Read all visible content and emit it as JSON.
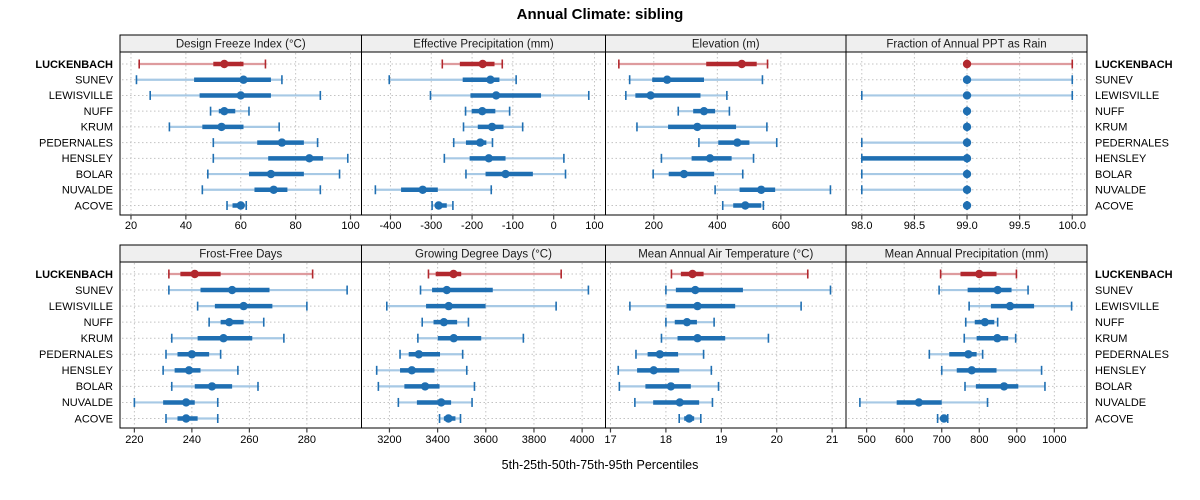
{
  "title": "Annual Climate: sibling",
  "xlabel": "5th-25th-50th-75th-95th Percentiles",
  "highlight_site": "LUCKENBACH",
  "sites": [
    "LUCKENBACH",
    "SUNEV",
    "LEWISVILLE",
    "NUFF",
    "KRUM",
    "PEDERNALES",
    "HENSLEY",
    "BOLAR",
    "NUVALDE",
    "ACOVE"
  ],
  "colors": {
    "highlight": "#B2282E",
    "highlight_light": "#DE9B9E",
    "normal": "#1F6FB2",
    "normal_light": "#A7C9E5",
    "header_bg": "#EFEFEF",
    "panel_border": "#000000",
    "grid": "#C3C3C3",
    "axis_tick": "#404040",
    "text": "#000000"
  },
  "chart_data": {
    "type": "errorbar-trellis",
    "percentile_labels": [
      "5th",
      "25th",
      "50th",
      "75th",
      "95th"
    ],
    "note": "values per site are [p5,p25,p50,p75,p95]",
    "panels": [
      {
        "title": "Design Freeze Index (°C)",
        "row": 0,
        "col": 0,
        "xlim": [
          16,
          104
        ],
        "ticks": [
          20,
          40,
          60,
          80,
          100
        ],
        "tick_decimals": 0,
        "values": [
          [
            23,
            50,
            54,
            61,
            69
          ],
          [
            22,
            43,
            61,
            71,
            75
          ],
          [
            27,
            45,
            60,
            71,
            89
          ],
          [
            49,
            52,
            54,
            58,
            63
          ],
          [
            34,
            46,
            53,
            61,
            74
          ],
          [
            50,
            66,
            75,
            83,
            88
          ],
          [
            50,
            70,
            85,
            90,
            99
          ],
          [
            48,
            63,
            71,
            83,
            96
          ],
          [
            46,
            65,
            72,
            77,
            89
          ],
          [
            55,
            57,
            60,
            61,
            62
          ]
        ]
      },
      {
        "title": "Effective Precipitation (mm)",
        "row": 0,
        "col": 1,
        "xlim": [
          -471,
          127
        ],
        "ticks": [
          -400,
          -300,
          -200,
          -100,
          0,
          100
        ],
        "tick_decimals": 0,
        "values": [
          [
            -273,
            -230,
            -174,
            -145,
            -126
          ],
          [
            -403,
            -223,
            -155,
            -133,
            -92
          ],
          [
            -302,
            -204,
            -141,
            -31,
            86
          ],
          [
            -216,
            -201,
            -175,
            -143,
            -108
          ],
          [
            -221,
            -186,
            -151,
            -123,
            -76
          ],
          [
            -245,
            -215,
            -180,
            -165,
            -150
          ],
          [
            -268,
            -206,
            -159,
            -118,
            25
          ],
          [
            -215,
            -167,
            -118,
            -51,
            29
          ],
          [
            -437,
            -374,
            -321,
            -284,
            -153
          ],
          [
            -298,
            -290,
            -282,
            -262,
            -247
          ]
        ]
      },
      {
        "title": "Elevation (m)",
        "row": 0,
        "col": 2,
        "xlim": [
          48,
          805
        ],
        "ticks": [
          200,
          400,
          600
        ],
        "tick_decimals": 0,
        "values": [
          [
            90,
            365,
            477,
            524,
            558
          ],
          [
            124,
            195,
            242,
            358,
            542
          ],
          [
            112,
            142,
            190,
            347,
            430
          ],
          [
            277,
            324,
            358,
            393,
            438
          ],
          [
            147,
            245,
            337,
            459,
            556
          ],
          [
            342,
            403,
            463,
            501,
            587
          ],
          [
            224,
            319,
            377,
            445,
            514
          ],
          [
            198,
            247,
            295,
            390,
            480
          ],
          [
            393,
            470,
            538,
            582,
            756
          ],
          [
            417,
            450,
            488,
            538,
            545
          ]
        ]
      },
      {
        "title": "Fraction of Annual PPT as Rain",
        "row": 0,
        "col": 3,
        "xlim": [
          97.85,
          100.14
        ],
        "ticks": [
          98.0,
          98.5,
          99.0,
          99.5,
          100.0
        ],
        "tick_decimals": 1,
        "values": [
          [
            99,
            99,
            99,
            99,
            100
          ],
          [
            99,
            99,
            99,
            99,
            100
          ],
          [
            98,
            99,
            99,
            99,
            100
          ],
          [
            99,
            99,
            99,
            99,
            99
          ],
          [
            99,
            99,
            99,
            99,
            99
          ],
          [
            98,
            99,
            99,
            99,
            99
          ],
          [
            98,
            98,
            99,
            99,
            99
          ],
          [
            98,
            99,
            99,
            99,
            99
          ],
          [
            98,
            99,
            99,
            99,
            99
          ],
          [
            99,
            99,
            99,
            99,
            99
          ]
        ]
      },
      {
        "title": "Frost-Free Days",
        "row": 1,
        "col": 0,
        "xlim": [
          215,
          299
        ],
        "ticks": [
          220,
          240,
          260,
          280
        ],
        "tick_decimals": 0,
        "values": [
          [
            232,
            236,
            241,
            250,
            282
          ],
          [
            232,
            243,
            254,
            267,
            294
          ],
          [
            242,
            248,
            258,
            268,
            280
          ],
          [
            246,
            250,
            253,
            258,
            265
          ],
          [
            233,
            242,
            251,
            261,
            272
          ],
          [
            231,
            235,
            240,
            246,
            250
          ],
          [
            230,
            234,
            239,
            243,
            256
          ],
          [
            233,
            241,
            247,
            254,
            263
          ],
          [
            220,
            230,
            238,
            241,
            249
          ],
          [
            231,
            235,
            238,
            242,
            249
          ]
        ]
      },
      {
        "title": "Growing Degree Days (°C)",
        "row": 1,
        "col": 1,
        "xlim": [
          3084,
          4097
        ],
        "ticks": [
          3200,
          3400,
          3600,
          3800,
          4000
        ],
        "tick_decimals": 0,
        "values": [
          [
            3362,
            3392,
            3466,
            3498,
            3913
          ],
          [
            3329,
            3377,
            3438,
            3629,
            4026
          ],
          [
            3189,
            3352,
            3446,
            3599,
            3892
          ],
          [
            3336,
            3383,
            3426,
            3481,
            3528
          ],
          [
            3318,
            3401,
            3467,
            3581,
            3756
          ],
          [
            3244,
            3280,
            3322,
            3410,
            3504
          ],
          [
            3147,
            3244,
            3293,
            3387,
            3521
          ],
          [
            3154,
            3262,
            3348,
            3408,
            3553
          ],
          [
            3237,
            3314,
            3415,
            3456,
            3543
          ],
          [
            3408,
            3426,
            3445,
            3474,
            3495
          ]
        ]
      },
      {
        "title": "Mean Annual Air Temperature (°C)",
        "row": 1,
        "col": 2,
        "xlim": [
          16.91,
          21.25
        ],
        "ticks": [
          17,
          18,
          19,
          20,
          21
        ],
        "tick_decimals": 0,
        "values": [
          [
            18.1,
            18.27,
            18.48,
            18.68,
            20.56
          ],
          [
            18.0,
            18.18,
            18.53,
            19.39,
            20.97
          ],
          [
            17.35,
            18.01,
            18.57,
            19.25,
            20.44
          ],
          [
            18.0,
            18.16,
            18.38,
            18.56,
            18.87
          ],
          [
            17.92,
            18.21,
            18.57,
            19.07,
            19.85
          ],
          [
            17.46,
            17.67,
            17.89,
            18.22,
            18.68
          ],
          [
            17.14,
            17.48,
            17.78,
            18.24,
            18.82
          ],
          [
            17.16,
            17.63,
            18.09,
            18.45,
            18.95
          ],
          [
            17.44,
            17.77,
            18.25,
            18.6,
            18.84
          ],
          [
            18.24,
            18.33,
            18.42,
            18.51,
            18.63
          ]
        ]
      },
      {
        "title": "Mean Annual Precipitation (mm)",
        "row": 1,
        "col": 3,
        "xlim": [
          445,
          1087
        ],
        "ticks": [
          500,
          600,
          700,
          800,
          900,
          1000
        ],
        "tick_decimals": 0,
        "values": [
          [
            697,
            750,
            800,
            846,
            899
          ],
          [
            693,
            769,
            849,
            886,
            930
          ],
          [
            773,
            831,
            882,
            946,
            1046
          ],
          [
            764,
            788,
            815,
            840,
            849
          ],
          [
            760,
            793,
            848,
            877,
            897
          ],
          [
            667,
            720,
            771,
            793,
            809
          ],
          [
            700,
            740,
            780,
            846,
            966
          ],
          [
            762,
            791,
            866,
            904,
            975
          ],
          [
            482,
            580,
            639,
            700,
            822
          ],
          [
            689,
            698,
            706,
            712,
            716
          ]
        ]
      }
    ]
  }
}
